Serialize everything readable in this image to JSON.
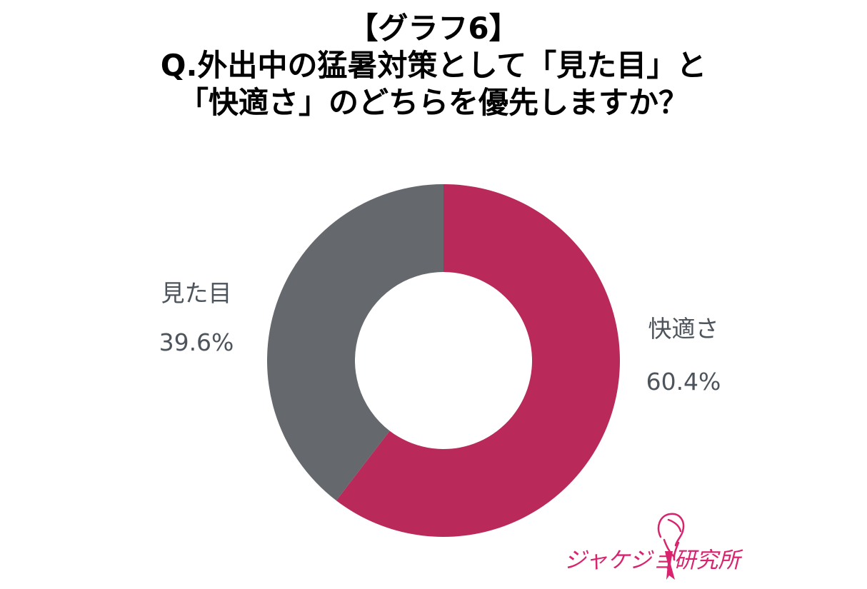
{
  "header": {
    "line1": "【グラフ6】",
    "line2": "Q.外出中の猛暑対策として「見た目」と",
    "line3": "「快適さ」のどちらを優先しますか？"
  },
  "chart_data": {
    "type": "pie",
    "donut": true,
    "title": "Q.外出中の猛暑対策として「見た目」と「快適さ」のどちらを優先しますか？",
    "slices": [
      {
        "label": "快適さ",
        "value": 60.4,
        "value_label": "60.4%",
        "color": "#b92a5a"
      },
      {
        "label": "見た目",
        "value": 39.6,
        "value_label": "39.6%",
        "color": "#65686c"
      }
    ],
    "start": "12 o'clock",
    "direction": "clockwise",
    "legend": "none"
  },
  "logo": {
    "text": "ジャケジョ研究所",
    "color": "#d9236f"
  }
}
